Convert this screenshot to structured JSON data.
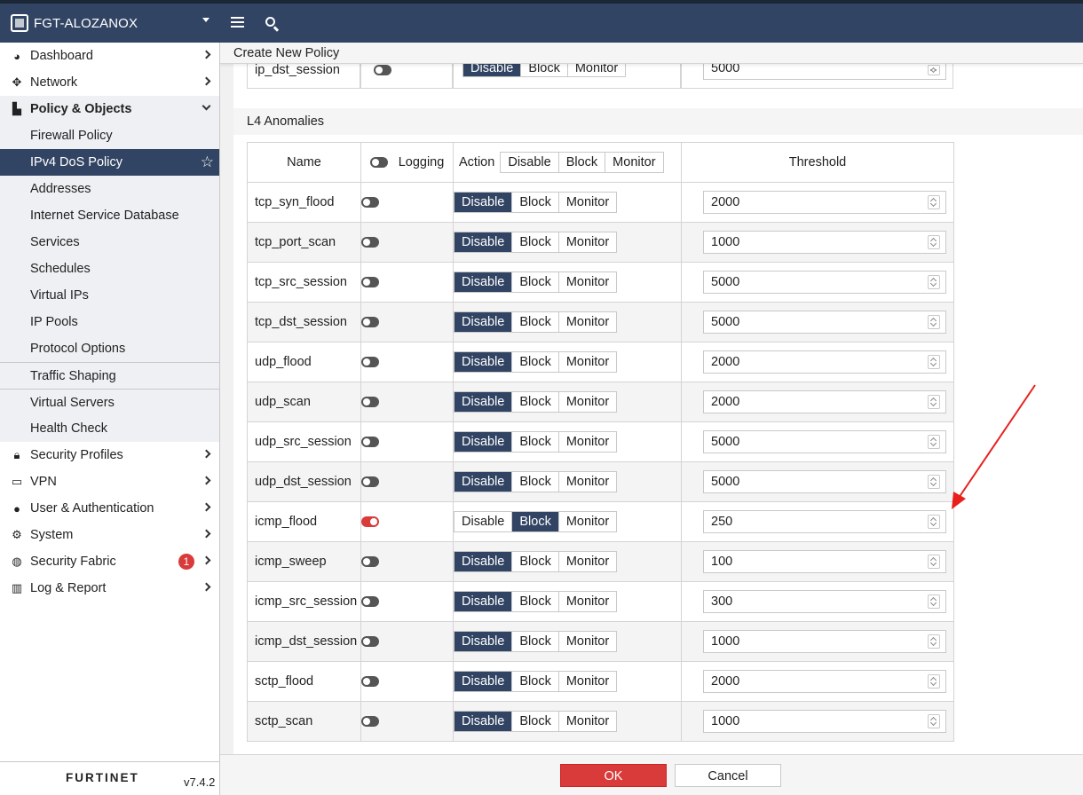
{
  "app": {
    "device_name": "FGT-ALOZANOX",
    "version": "v7.4.2",
    "vendor": "FURTINET"
  },
  "sidebar": {
    "items": [
      {
        "label": "Dashboard",
        "icon": "dashboard-icon"
      },
      {
        "label": "Network",
        "icon": "network-icon"
      },
      {
        "label": "Policy & Objects",
        "icon": "policy-icon",
        "expanded": true
      },
      {
        "label": "Security Profiles",
        "icon": "lock-icon"
      },
      {
        "label": "VPN",
        "icon": "laptop-icon"
      },
      {
        "label": "User & Authentication",
        "icon": "user-icon"
      },
      {
        "label": "System",
        "icon": "gear-icon"
      },
      {
        "label": "Security Fabric",
        "icon": "fabric-icon",
        "badge": "1"
      },
      {
        "label": "Log & Report",
        "icon": "chart-icon"
      }
    ],
    "policy_sub": [
      "Firewall Policy",
      "IPv4 DoS Policy",
      "Addresses",
      "Internet Service Database",
      "Services",
      "Schedules",
      "Virtual IPs",
      "IP Pools",
      "Protocol Options",
      "Traffic Shaping",
      "Virtual Servers",
      "Health Check"
    ],
    "active_sub": "IPv4 DoS Policy"
  },
  "page": {
    "title": "Create New Policy",
    "prev_row": {
      "name": "ip_dst_session",
      "threshold": "5000"
    },
    "section": "L4 Anomalies"
  },
  "table": {
    "headers": {
      "name": "Name",
      "logging": "Logging",
      "action": "Action",
      "threshold": "Threshold"
    },
    "action_options": [
      "Disable",
      "Block",
      "Monitor"
    ],
    "rows": [
      {
        "name": "tcp_syn_flood",
        "logging": false,
        "action": "Disable",
        "threshold": "2000"
      },
      {
        "name": "tcp_port_scan",
        "logging": false,
        "action": "Disable",
        "threshold": "1000"
      },
      {
        "name": "tcp_src_session",
        "logging": false,
        "action": "Disable",
        "threshold": "5000"
      },
      {
        "name": "tcp_dst_session",
        "logging": false,
        "action": "Disable",
        "threshold": "5000"
      },
      {
        "name": "udp_flood",
        "logging": false,
        "action": "Disable",
        "threshold": "2000"
      },
      {
        "name": "udp_scan",
        "logging": false,
        "action": "Disable",
        "threshold": "2000"
      },
      {
        "name": "udp_src_session",
        "logging": false,
        "action": "Disable",
        "threshold": "5000"
      },
      {
        "name": "udp_dst_session",
        "logging": false,
        "action": "Disable",
        "threshold": "5000"
      },
      {
        "name": "icmp_flood",
        "logging": true,
        "action": "Block",
        "threshold": "250"
      },
      {
        "name": "icmp_sweep",
        "logging": false,
        "action": "Disable",
        "threshold": "100"
      },
      {
        "name": "icmp_src_session",
        "logging": false,
        "action": "Disable",
        "threshold": "300"
      },
      {
        "name": "icmp_dst_session",
        "logging": false,
        "action": "Disable",
        "threshold": "1000"
      },
      {
        "name": "sctp_flood",
        "logging": false,
        "action": "Disable",
        "threshold": "2000"
      },
      {
        "name": "sctp_scan",
        "logging": false,
        "action": "Disable",
        "threshold": "1000"
      }
    ]
  },
  "buttons": {
    "ok": "OK",
    "cancel": "Cancel"
  },
  "colors": {
    "nav": "#324463",
    "accent_red": "#d93a3a",
    "selected_segment": "#324463"
  }
}
